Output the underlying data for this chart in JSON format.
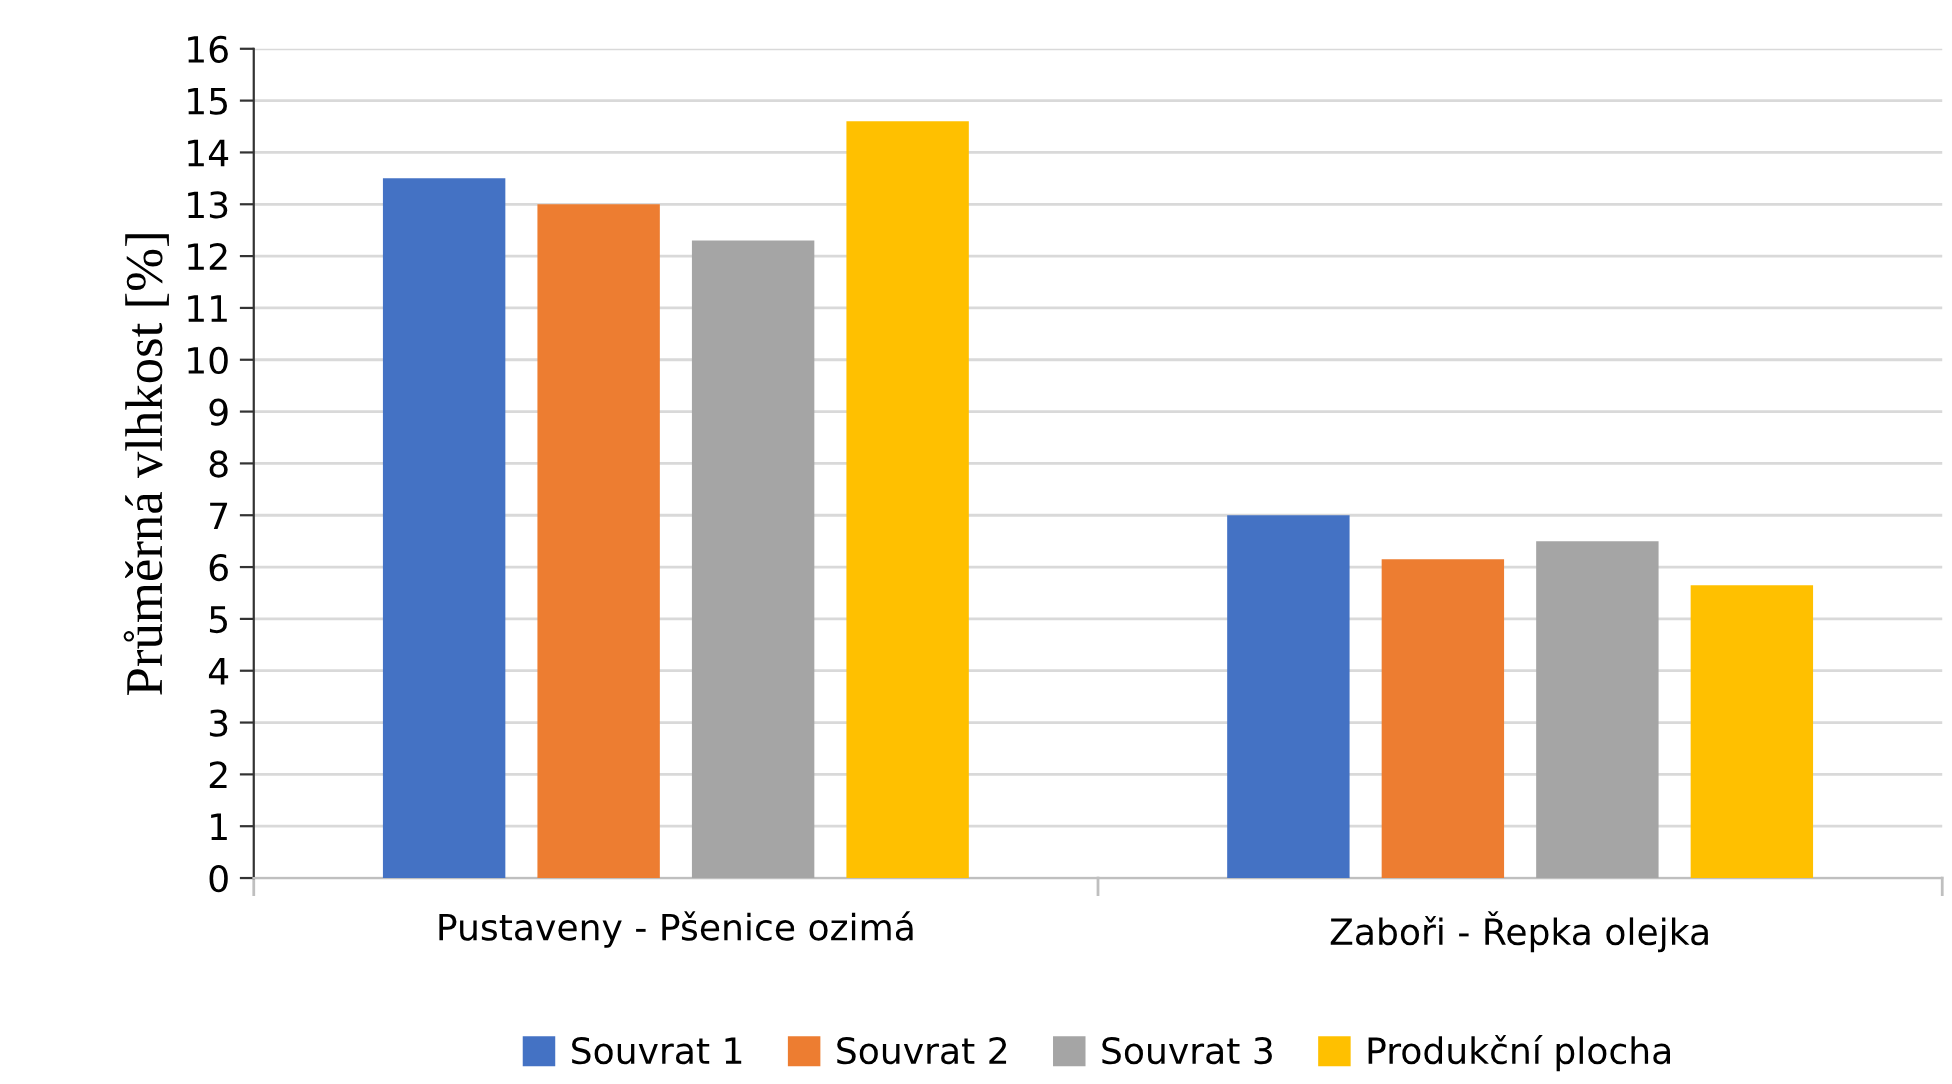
{
  "chart_data": {
    "type": "bar",
    "ylabel": "Průměrná vlhkost [%]",
    "categories": [
      "Pustaveny - Pšenice ozimá",
      "Zaboři - Řepka olejka"
    ],
    "series": [
      {
        "name": "Souvrat 1",
        "color": "#4472c4",
        "values": [
          13.5,
          7.0
        ]
      },
      {
        "name": "Souvrat 2",
        "color": "#ed7d31",
        "values": [
          13.0,
          6.15
        ]
      },
      {
        "name": "Souvrat 3",
        "color": "#a5a5a5",
        "values": [
          12.3,
          6.5
        ]
      },
      {
        "name": "Produkční plocha",
        "color": "#ffc000",
        "values": [
          14.6,
          5.65
        ]
      }
    ],
    "ylim": [
      0,
      16
    ],
    "yticks": [
      0,
      1,
      2,
      3,
      4,
      5,
      6,
      7,
      8,
      9,
      10,
      11,
      12,
      13,
      14,
      15,
      16
    ],
    "grid": "y",
    "legend": "bottom"
  }
}
